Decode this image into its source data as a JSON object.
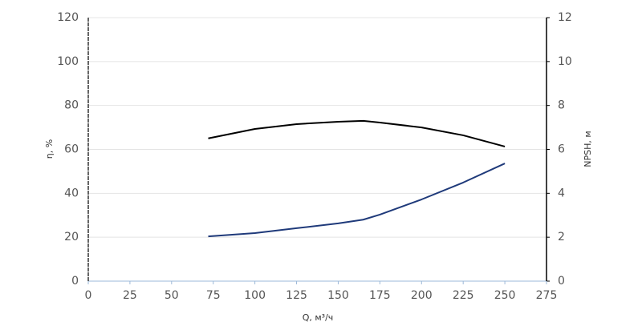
{
  "chart_data": {
    "type": "line",
    "x_label": "Q, м³/ч",
    "y_label": "η, %",
    "y2_label": "NPSH, м",
    "x": [
      72,
      100,
      125,
      150,
      165,
      175,
      200,
      225,
      250
    ],
    "series": [
      {
        "color": "#000000",
        "values": [
          65,
          69.3,
          71.5,
          72.6,
          73,
          72.2,
          70,
          66.4,
          61.3
        ]
      },
      {
        "color": "#1f3a7a",
        "axis": "y2",
        "values": [
          2.04,
          2.19,
          2.41,
          2.63,
          2.8,
          3.03,
          3.72,
          4.49,
          5.36
        ]
      }
    ],
    "xlim": [
      0,
      275
    ],
    "xticks": [
      0,
      25,
      50,
      75,
      100,
      125,
      150,
      175,
      200,
      225,
      250,
      275
    ],
    "ylim": [
      0,
      120
    ],
    "yticks": [
      0,
      20,
      40,
      60,
      80,
      100,
      120
    ],
    "y2lim": [
      0,
      12
    ],
    "y2ticks": [
      0,
      2,
      4,
      6,
      8,
      10,
      12
    ],
    "grid": true
  }
}
